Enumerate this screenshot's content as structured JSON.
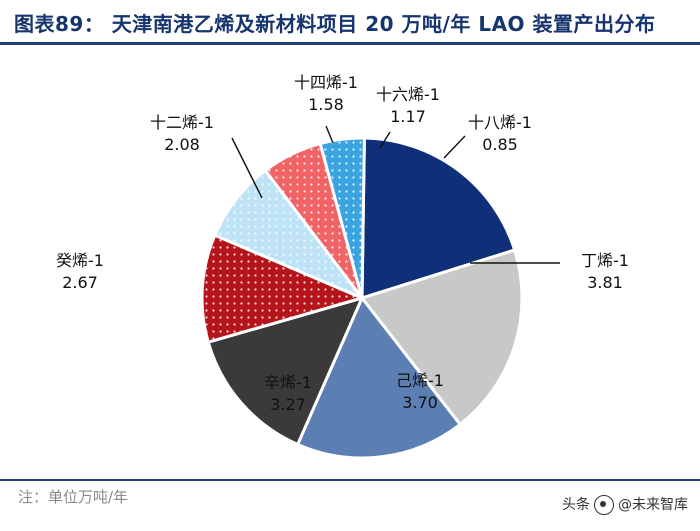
{
  "header": {
    "title": "图表89： 天津南港乙烯及新材料项目 20 万吨/年 LAO 装置产出分布"
  },
  "chart_data": {
    "type": "pie",
    "title": "图表89： 天津南港乙烯及新材料项目 20 万吨/年 LAO 装置产出分布",
    "unit": "万吨/年",
    "slices": [
      {
        "label": "丁烯-1",
        "value": 3.81,
        "color": "#0f2f78",
        "pattern": "none"
      },
      {
        "label": "己烯-1",
        "value": 3.7,
        "color": "#c8c8c8",
        "pattern": "none"
      },
      {
        "label": "辛烯-1",
        "value": 3.27,
        "color": "#5b7fb3",
        "pattern": "none"
      },
      {
        "label": "癸烯-1",
        "value": 2.67,
        "color": "#3a3a3a",
        "pattern": "none"
      },
      {
        "label": "十二烯-1",
        "value": 2.08,
        "color": "#b5141a",
        "pattern": "dots"
      },
      {
        "label": "十四烯-1",
        "value": 1.58,
        "color": "#bfe3f6",
        "pattern": "dots"
      },
      {
        "label": "十六烯-1",
        "value": 1.17,
        "color": "#f06466",
        "pattern": "dots"
      },
      {
        "label": "十八烯-1",
        "value": 0.85,
        "color": "#3aa4e0",
        "pattern": "dots"
      }
    ]
  },
  "footer": {
    "note": "注：单位万吨/年",
    "watermark_prefix": "头条",
    "watermark_name": "@未来智库"
  }
}
